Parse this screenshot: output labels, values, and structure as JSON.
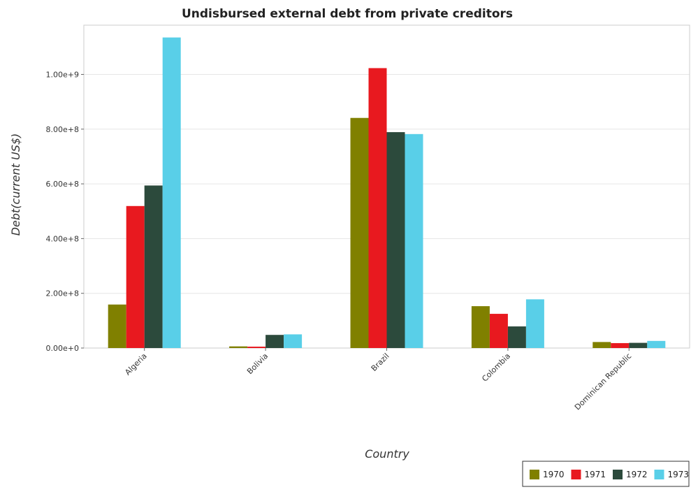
{
  "chart_data": {
    "type": "bar",
    "title": "Undisbursed external debt from private creditors",
    "xlabel": "Country",
    "ylabel": "Debt(current US$)",
    "categories": [
      "Algeria",
      "Bolivia",
      "Brazil",
      "Colombia",
      "Dominican Republic"
    ],
    "y_ticks": [
      "0.00e+0",
      "2.00e+8",
      "4.00e+8",
      "6.00e+8",
      "8.00e+8",
      "1.00e+9"
    ],
    "ylim": [
      0,
      1180000000
    ],
    "grid": true,
    "legend_position": "bottom-right",
    "series": [
      {
        "name": "1970",
        "color": "#808000",
        "values": [
          159000000,
          6000000,
          841000000,
          153000000,
          22000000
        ]
      },
      {
        "name": "1971",
        "color": "#e8191f",
        "values": [
          519000000,
          5000000,
          1023000000,
          125000000,
          18000000
        ]
      },
      {
        "name": "1972",
        "color": "#2c4a3c",
        "values": [
          594000000,
          48000000,
          789000000,
          79000000,
          19000000
        ]
      },
      {
        "name": "1973",
        "color": "#59cfe8",
        "values": [
          1135000000,
          50000000,
          782000000,
          178000000,
          26000000
        ]
      }
    ]
  }
}
